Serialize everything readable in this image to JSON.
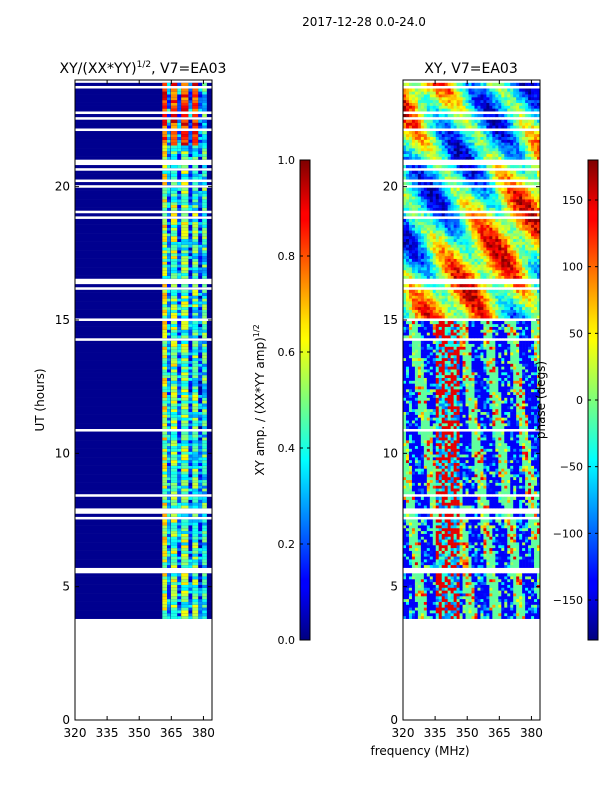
{
  "suptitle": "2017-12-28 0.0-24.0",
  "shared_xlabel": "frequency (MHz)",
  "chart_data": [
    {
      "type": "heatmap",
      "title_base": "XY/(XX*YY)",
      "title_sup": "1/2",
      "title_tail": ", V7=EA03",
      "ylabel": "UT (hours)",
      "xlim": [
        320,
        384
      ],
      "ylim": [
        0,
        24
      ],
      "xticks": [
        320,
        335,
        350,
        365,
        380
      ],
      "yticks": [
        0,
        5,
        10,
        15,
        20
      ],
      "data_range_hours": [
        3.8,
        24
      ],
      "colorbar": {
        "label_base": "XY amp. / (XX*YY amp)",
        "label_sup": "1/2",
        "range": [
          0.0,
          1.0
        ],
        "ticks": [
          0.0,
          0.2,
          0.4,
          0.6,
          0.8,
          1.0
        ],
        "tick_labels": [
          "0.0",
          "0.2",
          "0.4",
          "0.6",
          "0.8",
          "1.0"
        ]
      }
    },
    {
      "type": "heatmap",
      "title": "XY, V7=EA03",
      "xlim": [
        320,
        384
      ],
      "ylim": [
        0,
        24
      ],
      "xticks": [
        320,
        335,
        350,
        365,
        380
      ],
      "yticks": [
        0,
        5,
        10,
        15,
        20
      ],
      "data_range_hours": [
        3.8,
        24
      ],
      "colorbar": {
        "label": "phase (degs)",
        "range": [
          -180,
          180
        ],
        "ticks": [
          -150,
          -100,
          -50,
          0,
          50,
          100,
          150
        ],
        "tick_labels": [
          "−150",
          "−100",
          "−50",
          "0",
          "50",
          "100",
          "150"
        ]
      }
    }
  ]
}
